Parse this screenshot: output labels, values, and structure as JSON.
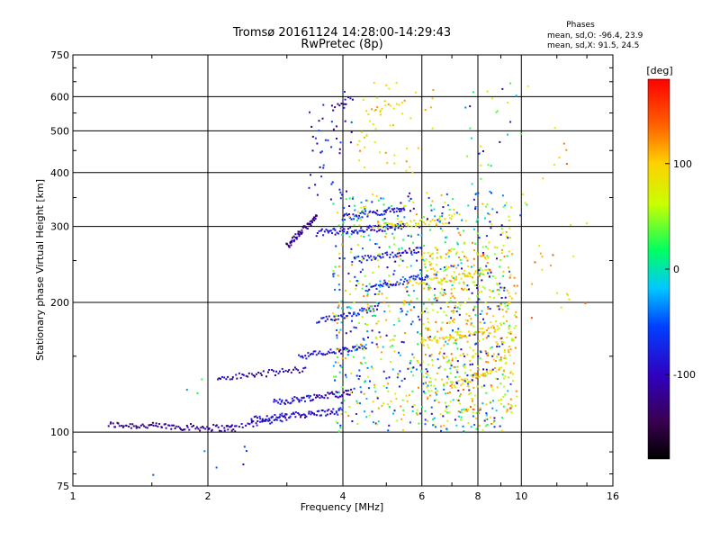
{
  "chart_data": {
    "type": "scatter",
    "title_line1": "Tromsø 20161124 14:28:00-14:29:43",
    "title_line2": "RwPretec (8p)",
    "stats_title": "Phases",
    "stats_line1": "mean, sd,O: -96.4, 23.9",
    "stats_line2": "mean, sd,X:  91.5, 24.5",
    "xlabel": "Frequency [MHz]",
    "ylabel": "Stationary phase Virtual Height [km]",
    "x_scale": "log2",
    "y_scale": "log",
    "xlim": [
      1,
      16
    ],
    "ylim": [
      75,
      750
    ],
    "x_ticks": [
      1,
      2,
      4,
      6,
      8,
      10,
      16
    ],
    "y_ticks": [
      75,
      100,
      200,
      300,
      400,
      500,
      600,
      750
    ],
    "x_grid": [
      2,
      4,
      6,
      8,
      10
    ],
    "y_grid": [
      100,
      200,
      300,
      400,
      500,
      600
    ],
    "grid": true,
    "colorbar": {
      "label": "[deg]",
      "range": [
        -180,
        180
      ],
      "ticks": [
        100,
        0,
        -100
      ],
      "colormap": "rainbow"
    },
    "traces": [
      {
        "f0": 1.2,
        "f1": 2.3,
        "h0": 104,
        "h1": 102,
        "phase": -130,
        "n": 90
      },
      {
        "f0": 2.2,
        "f1": 3.0,
        "h0": 102,
        "h1": 108,
        "phase": -110,
        "n": 30
      },
      {
        "f0": 2.5,
        "f1": 4.0,
        "h0": 107,
        "h1": 112,
        "phase": -100,
        "n": 80
      },
      {
        "f0": 2.8,
        "f1": 4.2,
        "h0": 117,
        "h1": 124,
        "phase": -105,
        "n": 70
      },
      {
        "f0": 2.1,
        "f1": 3.3,
        "h0": 133,
        "h1": 140,
        "phase": -120,
        "n": 50
      },
      {
        "f0": 3.2,
        "f1": 4.5,
        "h0": 150,
        "h1": 157,
        "phase": -100,
        "n": 50
      },
      {
        "f0": 3.5,
        "f1": 4.8,
        "h0": 180,
        "h1": 195,
        "phase": -95,
        "n": 45
      },
      {
        "f0": 3.0,
        "f1": 3.5,
        "h0": 270,
        "h1": 315,
        "phase": -130,
        "n": 60
      },
      {
        "f0": 3.5,
        "f1": 5.5,
        "h0": 290,
        "h1": 300,
        "phase": -100,
        "n": 70
      },
      {
        "f0": 4.0,
        "f1": 5.5,
        "h0": 315,
        "h1": 330,
        "phase": -90,
        "n": 50
      },
      {
        "f0": 4.2,
        "f1": 6.0,
        "h0": 250,
        "h1": 265,
        "phase": -95,
        "n": 50
      },
      {
        "f0": 4.5,
        "f1": 6.2,
        "h0": 215,
        "h1": 230,
        "phase": -85,
        "n": 50
      },
      {
        "f0": 4.8,
        "f1": 7.0,
        "h0": 300,
        "h1": 310,
        "phase": 80,
        "n": 40
      },
      {
        "f0": 5.5,
        "f1": 8.5,
        "h0": 220,
        "h1": 235,
        "phase": 90,
        "n": 45
      },
      {
        "f0": 6.0,
        "f1": 9.0,
        "h0": 160,
        "h1": 175,
        "phase": 95,
        "n": 40
      },
      {
        "f0": 7.0,
        "f1": 9.0,
        "h0": 128,
        "h1": 140,
        "phase": 100,
        "n": 35
      },
      {
        "f0": 4.5,
        "f1": 5.5,
        "h0": 550,
        "h1": 580,
        "phase": 100,
        "n": 15
      },
      {
        "f0": 3.8,
        "f1": 4.2,
        "h0": 560,
        "h1": 600,
        "phase": -120,
        "n": 10
      }
    ],
    "scatter_regions": [
      {
        "f0": 3.8,
        "f1": 9.5,
        "h0": 100,
        "h1": 360,
        "phase_lo": -130,
        "phase_hi": 130,
        "n": 900
      },
      {
        "f0": 6.0,
        "f1": 9.8,
        "h0": 110,
        "h1": 270,
        "phase_lo": 40,
        "phase_hi": 140,
        "n": 350
      },
      {
        "f0": 3.3,
        "f1": 4.2,
        "h0": 340,
        "h1": 620,
        "phase_lo": -140,
        "phase_hi": -60,
        "n": 45
      },
      {
        "f0": 4.3,
        "f1": 6.5,
        "h0": 400,
        "h1": 680,
        "phase_lo": 60,
        "phase_hi": 130,
        "n": 45
      },
      {
        "f0": 7.5,
        "f1": 10.5,
        "h0": 300,
        "h1": 650,
        "phase_lo": -130,
        "phase_hi": 100,
        "n": 40
      },
      {
        "f0": 10.5,
        "f1": 14.0,
        "h0": 180,
        "h1": 520,
        "phase_lo": 60,
        "phase_hi": 160,
        "n": 25
      },
      {
        "f0": 1.5,
        "f1": 3.0,
        "h0": 76,
        "h1": 150,
        "phase_lo": -130,
        "phase_hi": 30,
        "n": 10
      }
    ]
  }
}
